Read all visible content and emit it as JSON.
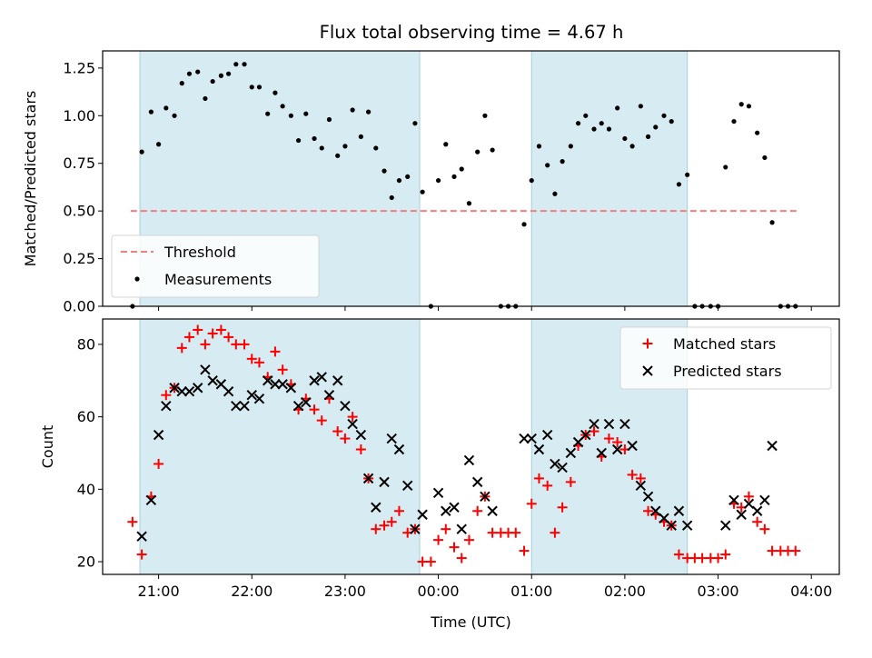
{
  "title": "Flux total observing time = 4.67 h",
  "chart_data": [
    {
      "type": "scatter",
      "ylabel": "Matched/Predicted stars",
      "xlabel": "",
      "xlim": [
        20.4,
        4.3
      ],
      "ylim": [
        0,
        1.34
      ],
      "yticks": [
        0,
        0.25,
        0.5,
        0.75,
        1.0,
        1.25
      ],
      "ytick_labels": [
        "0.00",
        "0.25",
        "0.50",
        "0.75",
        "1.00",
        "1.25"
      ],
      "shaded_intervals": [
        [
          20.8,
          23.8
        ],
        [
          1.0,
          2.67
        ]
      ],
      "threshold": {
        "value": 0.5,
        "x": [
          20.7,
          3.85
        ],
        "color": "#f08080"
      },
      "legend": {
        "placement": "lower-left",
        "entries": [
          {
            "label": "Threshold",
            "marker": "dashed-line",
            "color": "#f08080"
          },
          {
            "label": "Measurements",
            "marker": "dot",
            "color": "#000000"
          }
        ]
      },
      "series": [
        {
          "marker": "dot",
          "color": "#000000",
          "points": [
            [
              20.72,
              0.0
            ],
            [
              20.82,
              0.81
            ],
            [
              20.92,
              1.02
            ],
            [
              21.0,
              0.85
            ],
            [
              21.08,
              1.04
            ],
            [
              21.17,
              1.0
            ],
            [
              21.25,
              1.17
            ],
            [
              21.33,
              1.22
            ],
            [
              21.42,
              1.23
            ],
            [
              21.5,
              1.09
            ],
            [
              21.58,
              1.18
            ],
            [
              21.67,
              1.21
            ],
            [
              21.75,
              1.22
            ],
            [
              21.83,
              1.27
            ],
            [
              21.92,
              1.27
            ],
            [
              22.0,
              1.15
            ],
            [
              22.08,
              1.15
            ],
            [
              22.17,
              1.01
            ],
            [
              22.25,
              1.12
            ],
            [
              22.33,
              1.05
            ],
            [
              22.42,
              1.0
            ],
            [
              22.5,
              0.87
            ],
            [
              22.58,
              1.01
            ],
            [
              22.67,
              0.88
            ],
            [
              22.75,
              0.83
            ],
            [
              22.83,
              0.98
            ],
            [
              22.92,
              0.79
            ],
            [
              23.0,
              0.84
            ],
            [
              23.08,
              1.03
            ],
            [
              23.17,
              0.89
            ],
            [
              23.25,
              1.02
            ],
            [
              23.33,
              0.83
            ],
            [
              23.42,
              0.71
            ],
            [
              23.5,
              0.57
            ],
            [
              23.58,
              0.66
            ],
            [
              23.67,
              0.68
            ],
            [
              23.75,
              0.96
            ],
            [
              23.83,
              0.6
            ],
            [
              23.92,
              0.0
            ],
            [
              0.0,
              0.66
            ],
            [
              0.08,
              0.85
            ],
            [
              0.17,
              0.68
            ],
            [
              0.25,
              0.72
            ],
            [
              0.33,
              0.54
            ],
            [
              0.42,
              0.81
            ],
            [
              0.5,
              1.0
            ],
            [
              0.58,
              0.82
            ],
            [
              0.67,
              0.0
            ],
            [
              0.75,
              0.0
            ],
            [
              0.83,
              0.0
            ],
            [
              0.92,
              0.43
            ],
            [
              1.0,
              0.66
            ],
            [
              1.08,
              0.84
            ],
            [
              1.17,
              0.74
            ],
            [
              1.25,
              0.59
            ],
            [
              1.33,
              0.76
            ],
            [
              1.42,
              0.84
            ],
            [
              1.5,
              0.96
            ],
            [
              1.58,
              1.0
            ],
            [
              1.67,
              0.93
            ],
            [
              1.75,
              0.96
            ],
            [
              1.83,
              0.93
            ],
            [
              1.92,
              1.04
            ],
            [
              2.0,
              0.88
            ],
            [
              2.08,
              0.84
            ],
            [
              2.17,
              1.05
            ],
            [
              2.25,
              0.89
            ],
            [
              2.33,
              0.94
            ],
            [
              2.42,
              1.0
            ],
            [
              2.5,
              0.97
            ],
            [
              2.58,
              0.64
            ],
            [
              2.67,
              0.69
            ],
            [
              2.75,
              0.0
            ],
            [
              2.83,
              0.0
            ],
            [
              2.92,
              0.0
            ],
            [
              3.0,
              0.0
            ],
            [
              3.08,
              0.73
            ],
            [
              3.17,
              0.97
            ],
            [
              3.25,
              1.06
            ],
            [
              3.33,
              1.05
            ],
            [
              3.42,
              0.91
            ],
            [
              3.5,
              0.78
            ],
            [
              3.58,
              0.44
            ],
            [
              3.67,
              0.0
            ],
            [
              3.75,
              0.0
            ],
            [
              3.83,
              0.0
            ]
          ]
        }
      ]
    },
    {
      "type": "scatter",
      "ylabel": "Count",
      "xlabel": "Time (UTC)",
      "xlim": [
        20.4,
        4.3
      ],
      "ylim": [
        16.5,
        87
      ],
      "yticks": [
        20,
        40,
        60,
        80
      ],
      "ytick_labels": [
        "20",
        "40",
        "60",
        "80"
      ],
      "xticks": [
        21,
        22,
        23,
        0,
        1,
        2,
        3,
        4
      ],
      "xtick_labels": [
        "21:00",
        "22:00",
        "23:00",
        "00:00",
        "01:00",
        "02:00",
        "03:00",
        "04:00"
      ],
      "shaded_intervals": [
        [
          20.8,
          23.8
        ],
        [
          1.0,
          2.67
        ]
      ],
      "legend": {
        "placement": "upper-right",
        "entries": [
          {
            "label": "Matched stars",
            "marker": "plus",
            "color": "#ff0000"
          },
          {
            "label": "Predicted stars",
            "marker": "x",
            "color": "#000000"
          }
        ]
      },
      "series": [
        {
          "name": "Matched stars",
          "marker": "plus",
          "color": "#ff0000",
          "x": [
            20.72,
            20.82,
            20.92,
            21.0,
            21.08,
            21.17,
            21.25,
            21.33,
            21.42,
            21.5,
            21.58,
            21.67,
            21.75,
            21.83,
            21.92,
            22.0,
            22.08,
            22.17,
            22.25,
            22.33,
            22.42,
            22.5,
            22.58,
            22.67,
            22.75,
            22.83,
            22.92,
            23.0,
            23.08,
            23.17,
            23.25,
            23.33,
            23.42,
            23.5,
            23.58,
            23.67,
            23.75,
            23.83,
            23.92,
            0.0,
            0.08,
            0.17,
            0.25,
            0.33,
            0.42,
            0.5,
            0.58,
            0.67,
            0.75,
            0.83,
            0.92,
            1.0,
            1.08,
            1.17,
            1.25,
            1.33,
            1.42,
            1.5,
            1.58,
            1.67,
            1.75,
            1.83,
            1.92,
            2.0,
            2.08,
            2.17,
            2.25,
            2.33,
            2.42,
            2.5,
            2.58,
            2.67,
            2.75,
            2.83,
            2.92,
            3.0,
            3.08,
            3.17,
            3.25,
            3.33,
            3.42,
            3.5,
            3.58,
            3.67,
            3.75,
            3.83
          ],
          "values": [
            31,
            22,
            38,
            47,
            66,
            68,
            79,
            82,
            84,
            80,
            83,
            84,
            82,
            80,
            80,
            76,
            75,
            71,
            78,
            73,
            69,
            62,
            65,
            62,
            59,
            65,
            56,
            54,
            60,
            51,
            43,
            29,
            30,
            31,
            34,
            28,
            29,
            20,
            20,
            26,
            29,
            24,
            21,
            26,
            34,
            38,
            28,
            28,
            28,
            28,
            23,
            36,
            43,
            41,
            28,
            35,
            42,
            52,
            55,
            56,
            49,
            54,
            53,
            51,
            44,
            43,
            34,
            33,
            31,
            30,
            22,
            21,
            21,
            21,
            21,
            21,
            22,
            36,
            35,
            38,
            31,
            29,
            23,
            23,
            23,
            23
          ]
        },
        {
          "name": "Predicted stars",
          "marker": "x",
          "color": "#000000",
          "x": [
            20.82,
            20.92,
            21.0,
            21.08,
            21.17,
            21.25,
            21.33,
            21.42,
            21.5,
            21.58,
            21.67,
            21.75,
            21.83,
            21.92,
            22.0,
            22.08,
            22.17,
            22.25,
            22.33,
            22.42,
            22.5,
            22.58,
            22.67,
            22.75,
            22.83,
            22.92,
            23.0,
            23.08,
            23.17,
            23.25,
            23.33,
            23.42,
            23.5,
            23.58,
            23.67,
            23.75,
            23.83,
            0.0,
            0.08,
            0.17,
            0.25,
            0.33,
            0.42,
            0.5,
            0.58,
            0.92,
            1.0,
            1.08,
            1.17,
            1.25,
            1.33,
            1.42,
            1.5,
            1.58,
            1.67,
            1.75,
            1.83,
            1.92,
            2.0,
            2.08,
            2.17,
            2.25,
            2.33,
            2.42,
            2.5,
            2.58,
            2.67,
            3.08,
            3.17,
            3.25,
            3.33,
            3.42,
            3.5,
            3.58
          ],
          "values": [
            27,
            37,
            55,
            63,
            68,
            67,
            67,
            68,
            73,
            70,
            69,
            67,
            63,
            63,
            66,
            65,
            70,
            69,
            69,
            68,
            63,
            64,
            70,
            71,
            66,
            70,
            63,
            58,
            55,
            43,
            35,
            42,
            54,
            51,
            41,
            29,
            33,
            39,
            34,
            35,
            29,
            48,
            42,
            38,
            34,
            54,
            54,
            51,
            55,
            47,
            46,
            50,
            53,
            55,
            58,
            50,
            58,
            51,
            58,
            52,
            41,
            38,
            34,
            32,
            30,
            34,
            30,
            30,
            37,
            33,
            36,
            34,
            37,
            52
          ]
        }
      ]
    }
  ]
}
